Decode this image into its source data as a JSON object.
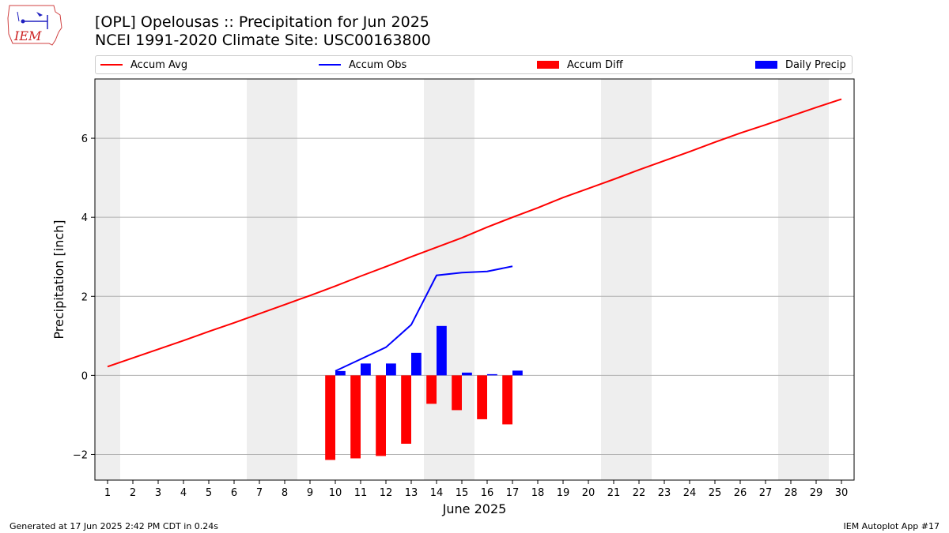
{
  "header": {
    "logo_text": "IEM",
    "title_line1": "[OPL] Opelousas :: Precipitation for Jun 2025",
    "title_line2": "NCEI 1991-2020 Climate Site: USC00163800"
  },
  "legend": {
    "accum_avg": "Accum Avg",
    "accum_obs": "Accum Obs",
    "accum_diff": "Accum Diff",
    "daily_precip": "Daily Precip"
  },
  "colors": {
    "avg": "#ff0000",
    "obs": "#0000ff",
    "diff": "#ff0000",
    "daily": "#0000ff",
    "weekend": "#eeeeee",
    "grid": "#b0b0b0"
  },
  "footer": {
    "left": "Generated at 17 Jun 2025 2:42 PM CDT in 0.24s",
    "right": "IEM Autoplot App #17"
  },
  "chart_data": {
    "type": "bar",
    "xlabel": "June 2025",
    "ylabel": "Precipitation [inch]",
    "xlim": [
      0.5,
      30.5
    ],
    "ylim": [
      -2.65,
      7.5
    ],
    "yticks": [
      -2,
      0,
      2,
      4,
      6
    ],
    "x_tick_labels": [
      "1",
      "2",
      "3",
      "4",
      "5",
      "6",
      "7",
      "8",
      "9",
      "10",
      "11",
      "12",
      "13",
      "14",
      "15",
      "16",
      "17",
      "18",
      "19",
      "20",
      "21",
      "22",
      "23",
      "24",
      "25",
      "26",
      "27",
      "28",
      "29",
      "30"
    ],
    "weekend_bands": [
      [
        0.5,
        1.5
      ],
      [
        6.5,
        8.5
      ],
      [
        13.5,
        15.5
      ],
      [
        20.5,
        22.5
      ],
      [
        27.5,
        29.5
      ]
    ],
    "grid": "horizontal",
    "legend_position": "top",
    "accum_avg": {
      "days": [
        1,
        2,
        3,
        4,
        5,
        6,
        7,
        8,
        9,
        10,
        11,
        12,
        13,
        14,
        15,
        16,
        17,
        18,
        19,
        20,
        21,
        22,
        23,
        24,
        25,
        26,
        27,
        28,
        29,
        30
      ],
      "values": [
        0.22,
        0.44,
        0.66,
        0.88,
        1.11,
        1.33,
        1.56,
        1.79,
        2.02,
        2.26,
        2.51,
        2.75,
        3.0,
        3.24,
        3.48,
        3.75,
        4.0,
        4.24,
        4.5,
        4.73,
        4.96,
        5.2,
        5.43,
        5.66,
        5.9,
        6.13,
        6.34,
        6.56,
        6.78,
        6.99
      ]
    },
    "accum_obs": {
      "days": [
        10,
        11,
        12,
        13,
        14,
        15,
        16,
        17
      ],
      "values": [
        0.11,
        0.41,
        0.71,
        1.28,
        2.53,
        2.6,
        2.63,
        2.76
      ]
    },
    "accum_diff": {
      "days": [
        10,
        11,
        12,
        13,
        14,
        15,
        16,
        17
      ],
      "values": [
        -2.14,
        -2.1,
        -2.04,
        -1.73,
        -0.72,
        -0.88,
        -1.11,
        -1.24
      ]
    },
    "daily_precip": {
      "days": [
        10,
        11,
        12,
        13,
        14,
        15,
        16,
        17
      ],
      "values": [
        0.11,
        0.3,
        0.3,
        0.57,
        1.25,
        0.07,
        0.03,
        0.12
      ]
    }
  }
}
